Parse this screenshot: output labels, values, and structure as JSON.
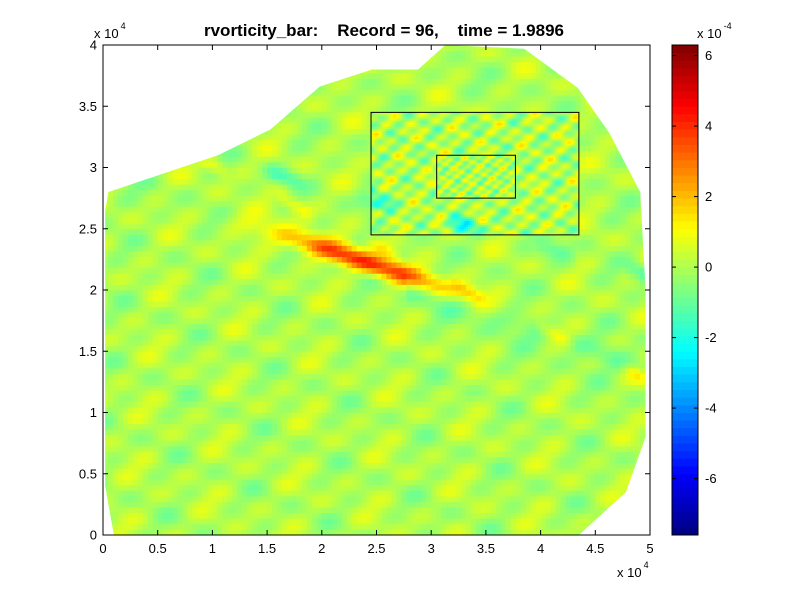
{
  "chart_data": {
    "type": "heatmap",
    "title": "rvorticity_bar:    Record = 96,    time = 1.9896",
    "colormap": "jet",
    "xlim": [
      0,
      50000
    ],
    "ylim": [
      0,
      40000
    ],
    "x_ticks": [
      0,
      5000,
      10000,
      15000,
      20000,
      25000,
      30000,
      35000,
      40000,
      45000,
      50000
    ],
    "x_tick_labels": [
      "0",
      "0.5",
      "1",
      "1.5",
      "2",
      "2.5",
      "3",
      "3.5",
      "4",
      "4.5",
      "5"
    ],
    "y_ticks": [
      0,
      5000,
      10000,
      15000,
      20000,
      25000,
      30000,
      35000,
      40000
    ],
    "y_tick_labels": [
      "0",
      "0.5",
      "1",
      "1.5",
      "2",
      "2.5",
      "3",
      "3.5",
      "4"
    ],
    "x_multiplier": {
      "base": "x 10",
      "exponent": "4"
    },
    "y_multiplier": {
      "base": "x 10",
      "exponent": "4"
    },
    "colorbar": {
      "clim": [
        -0.00076,
        0.00063
      ],
      "ticks": [
        -0.0006,
        -0.0004,
        -0.0002,
        0,
        0.0002,
        0.0004,
        0.0006
      ],
      "tick_labels": [
        "-6",
        "-4",
        "-2",
        "0",
        "2",
        "4",
        "6"
      ],
      "multiplier": {
        "base": "x 10",
        "exponent": "-4"
      }
    },
    "nested_grids": [
      {
        "x": [
          24500,
          43500
        ],
        "y": [
          24500,
          34500
        ]
      },
      {
        "x": [
          30500,
          37700
        ],
        "y": [
          27500,
          31000
        ]
      }
    ],
    "grid": false
  }
}
